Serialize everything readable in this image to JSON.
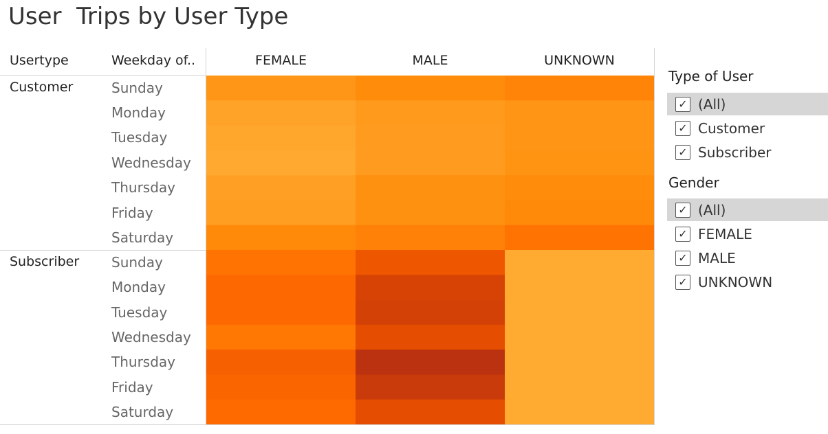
{
  "chart_data": {
    "type": "heatmap",
    "title": "User  Trips by User Type",
    "row_headers": [
      "Usertype",
      "Weekday of.."
    ],
    "columns": [
      "FEMALE",
      "MALE",
      "UNKNOWN"
    ],
    "groups": [
      {
        "name": "Customer",
        "rows": [
          "Sunday",
          "Monday",
          "Tuesday",
          "Wednesday",
          "Thursday",
          "Friday",
          "Saturday"
        ],
        "values": [
          [
            0.35,
            0.4,
            0.45
          ],
          [
            0.28,
            0.33,
            0.36
          ],
          [
            0.26,
            0.32,
            0.36
          ],
          [
            0.25,
            0.32,
            0.37
          ],
          [
            0.3,
            0.38,
            0.4
          ],
          [
            0.31,
            0.38,
            0.42
          ],
          [
            0.42,
            0.47,
            0.55
          ]
        ]
      },
      {
        "name": "Subscriber",
        "rows": [
          "Sunday",
          "Monday",
          "Tuesday",
          "Wednesday",
          "Thursday",
          "Friday",
          "Saturday"
        ],
        "values": [
          [
            0.55,
            0.72,
            0.24
          ],
          [
            0.61,
            0.85,
            0.24
          ],
          [
            0.61,
            0.86,
            0.24
          ],
          [
            0.52,
            0.78,
            0.24
          ],
          [
            0.66,
            0.96,
            0.24
          ],
          [
            0.63,
            0.9,
            0.24
          ],
          [
            0.6,
            0.78,
            0.24
          ]
        ]
      }
    ],
    "color_scale": [
      "#f8d24f",
      "#ffb23c",
      "#ff8d0b",
      "#ff6a00",
      "#e24a00",
      "#b02c14"
    ]
  },
  "filters": [
    {
      "title": "Type of User",
      "items": [
        {
          "label": "(All)",
          "checked": true
        },
        {
          "label": "Customer",
          "checked": true
        },
        {
          "label": "Subscriber",
          "checked": true
        }
      ]
    },
    {
      "title": "Gender",
      "items": [
        {
          "label": "(All)",
          "checked": true
        },
        {
          "label": "FEMALE",
          "checked": true
        },
        {
          "label": "MALE",
          "checked": true
        },
        {
          "label": "UNKNOWN",
          "checked": true
        }
      ]
    }
  ]
}
